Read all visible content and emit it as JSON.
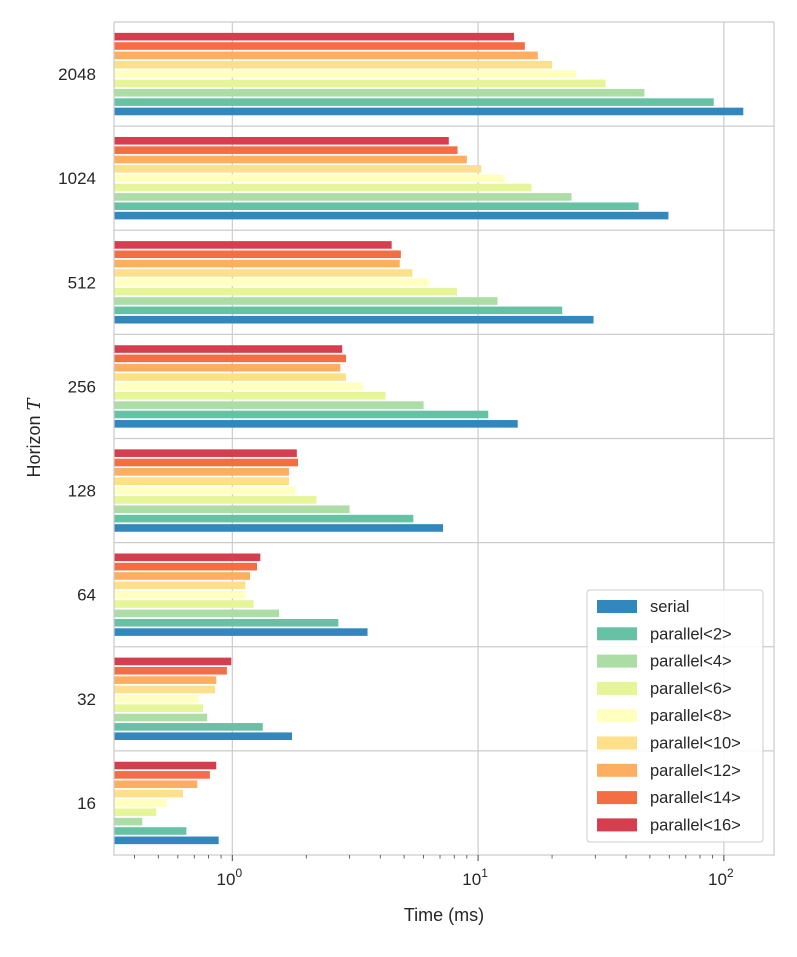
{
  "chart_data": {
    "type": "bar",
    "orientation": "horizontal",
    "x_scale": "log",
    "xlabel": "Time (ms)",
    "ylabel": "Horizon",
    "ylabel_symbol": "T",
    "xlim": [
      0.33,
      160
    ],
    "x_ticks": [
      {
        "value": 1,
        "base": "10",
        "exp": "0"
      },
      {
        "value": 10,
        "base": "10",
        "exp": "1"
      },
      {
        "value": 100,
        "base": "10",
        "exp": "2"
      }
    ],
    "grid": true,
    "legend_position": "lower-right",
    "categories": [
      "16",
      "32",
      "64",
      "128",
      "256",
      "512",
      "1024",
      "2048"
    ],
    "series": [
      {
        "name": "serial",
        "color": "#3288bd",
        "values": [
          0.88,
          1.75,
          3.55,
          7.2,
          14.5,
          29.5,
          59.5,
          120
        ]
      },
      {
        "name": "parallel<2>",
        "color": "#66c2a5",
        "values": [
          0.65,
          1.33,
          2.7,
          5.45,
          11.0,
          22.0,
          45.0,
          91.0
        ]
      },
      {
        "name": "parallel<4>",
        "color": "#abdda4",
        "values": [
          0.43,
          0.79,
          1.55,
          3.0,
          6.0,
          12.0,
          24.0,
          47.5
        ]
      },
      {
        "name": "parallel<6>",
        "color": "#e6f598",
        "values": [
          0.49,
          0.76,
          1.22,
          2.2,
          4.2,
          8.2,
          16.5,
          33.0
        ]
      },
      {
        "name": "parallel<8>",
        "color": "#ffffbf",
        "values": [
          0.54,
          0.73,
          1.13,
          1.8,
          3.4,
          6.3,
          12.8,
          25.0
        ]
      },
      {
        "name": "parallel<10>",
        "color": "#fee08b",
        "values": [
          0.63,
          0.85,
          1.13,
          1.7,
          2.9,
          5.4,
          10.3,
          20.0
        ]
      },
      {
        "name": "parallel<12>",
        "color": "#fdae61",
        "values": [
          0.72,
          0.86,
          1.18,
          1.7,
          2.75,
          4.8,
          9.0,
          17.5
        ]
      },
      {
        "name": "parallel<14>",
        "color": "#f46d43",
        "values": [
          0.81,
          0.95,
          1.26,
          1.85,
          2.9,
          4.85,
          8.25,
          15.5
        ]
      },
      {
        "name": "parallel<16>",
        "color": "#d53e4f",
        "values": [
          0.86,
          0.99,
          1.3,
          1.83,
          2.8,
          4.45,
          7.6,
          14.0
        ]
      }
    ]
  }
}
